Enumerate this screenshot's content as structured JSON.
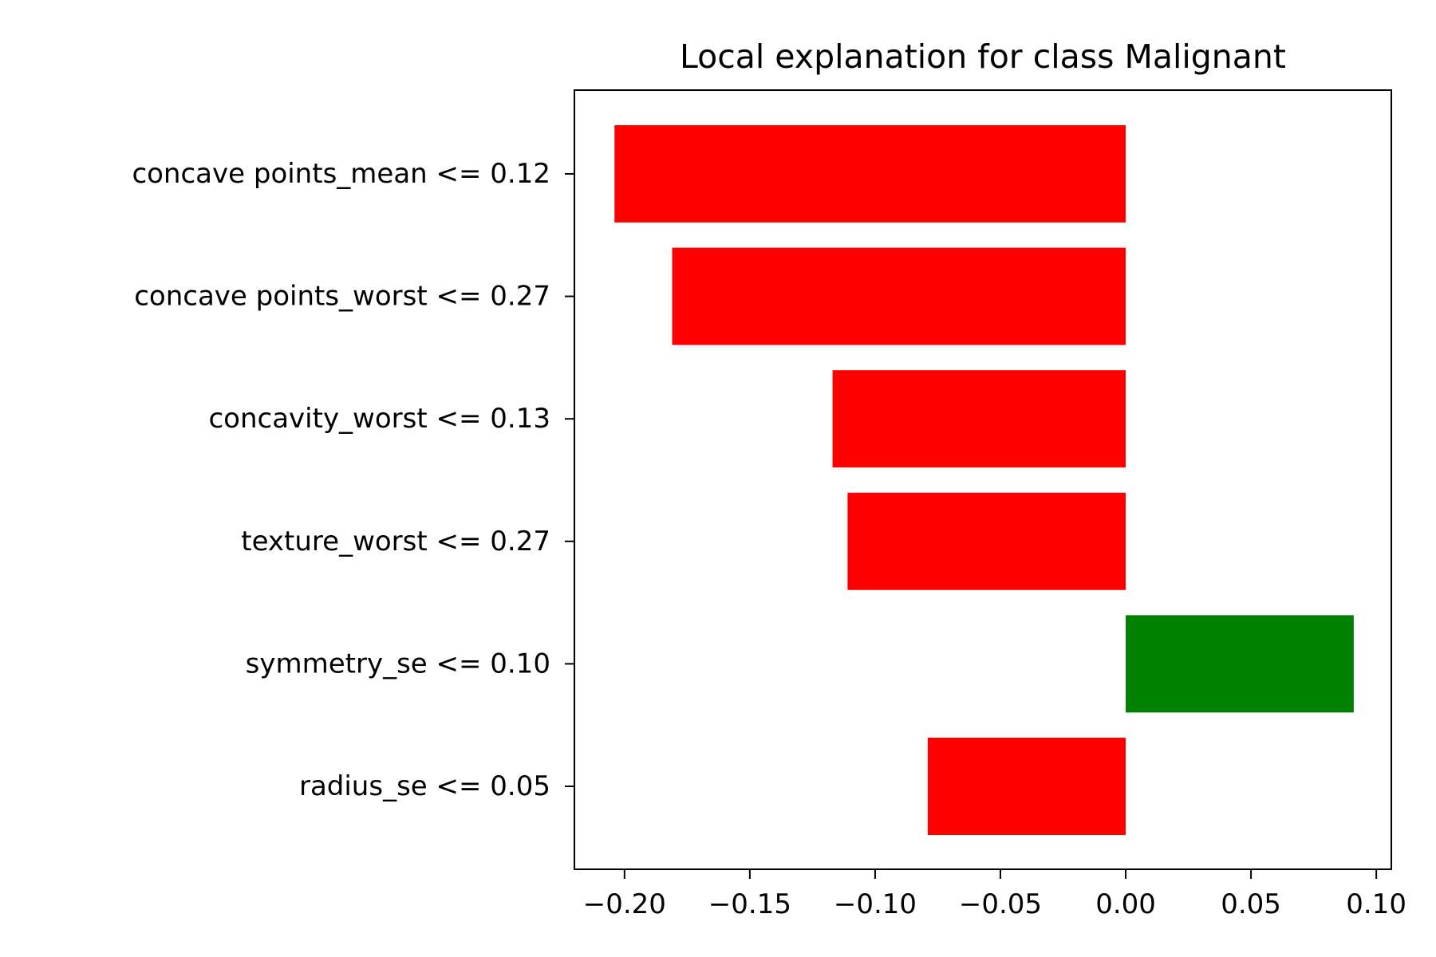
{
  "chart_data": {
    "type": "bar",
    "orientation": "horizontal",
    "title": "Local explanation for class Malignant",
    "xlabel": "",
    "ylabel": "",
    "categories": [
      "concave points_mean <= 0.12",
      "concave points_worst <= 0.27",
      "concavity_worst <= 0.13",
      "texture_worst <= 0.27",
      "symmetry_se <= 0.10",
      "radius_se <= 0.05"
    ],
    "values": [
      -0.204,
      -0.181,
      -0.117,
      -0.111,
      0.091,
      -0.079
    ],
    "xlim": [
      -0.22,
      0.106
    ],
    "xticks": [
      -0.2,
      -0.15,
      -0.1,
      -0.05,
      0.0,
      0.05,
      0.1
    ],
    "xtick_labels": [
      "−0.20",
      "−0.15",
      "−0.10",
      "−0.05",
      "0.00",
      "0.05",
      "0.10"
    ],
    "grid": false,
    "legend": "none",
    "colors": {
      "negative": "#ff0000",
      "positive": "#008000"
    }
  }
}
